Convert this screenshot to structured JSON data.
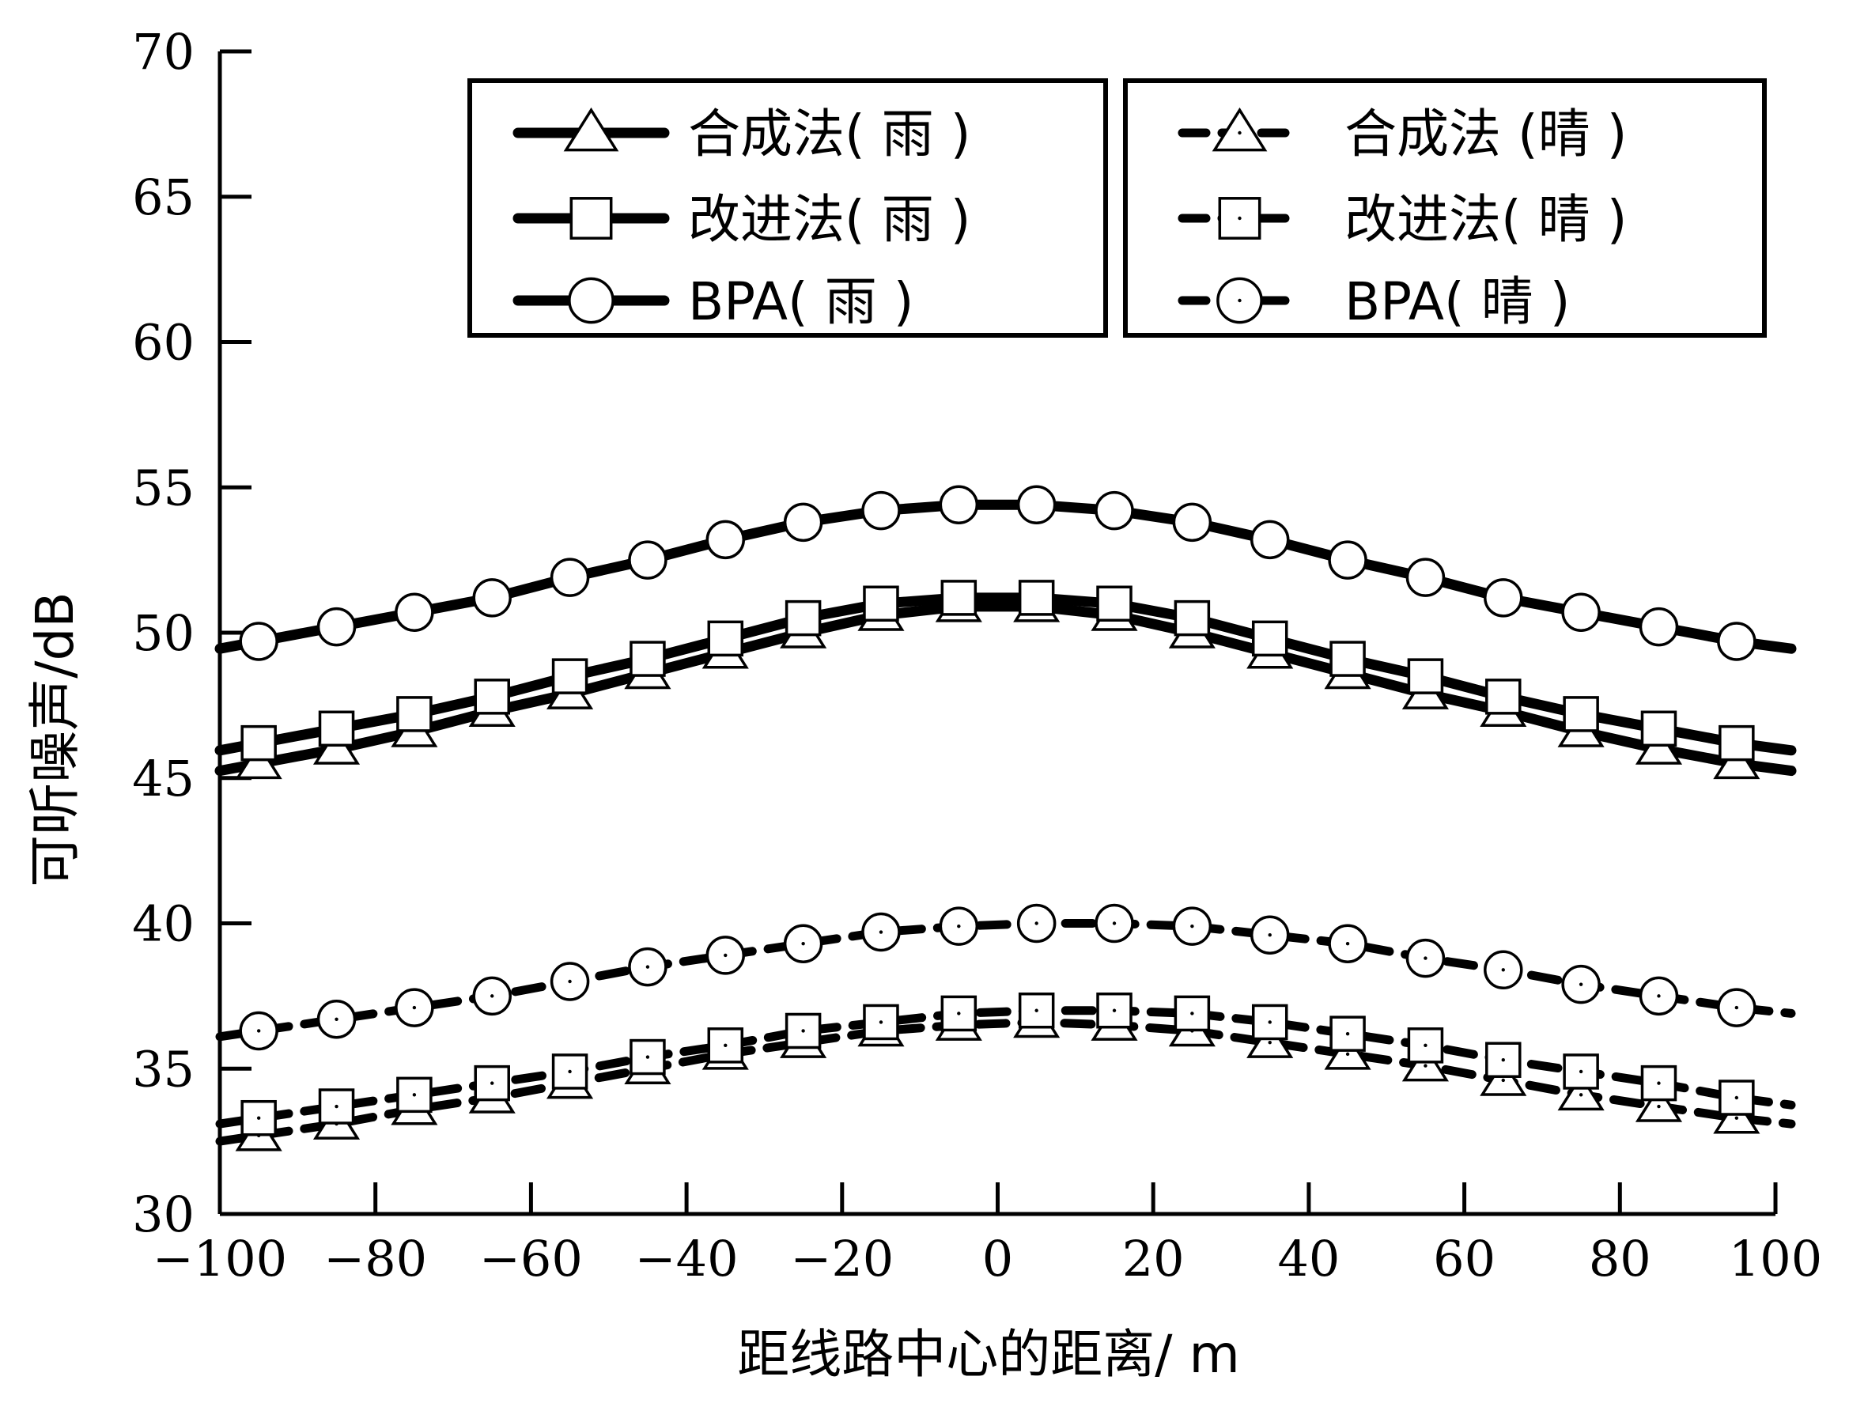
{
  "chart_data": {
    "type": "line",
    "xlabel": "距线路中心的距离/ m",
    "ylabel": "可听噪声/dB",
    "xlim": [
      -100,
      100
    ],
    "ylim": [
      30,
      70
    ],
    "x_ticks": [
      "−100",
      "−80",
      "−60",
      "−40",
      "−20",
      "0",
      "20",
      "40",
      "60",
      "80",
      "100"
    ],
    "y_ticks": [
      "30",
      "35",
      "40",
      "45",
      "50",
      "55",
      "60",
      "65",
      "70"
    ],
    "grid": false,
    "legend_position": "top",
    "marker_x": [
      -95,
      -85,
      -75,
      -65,
      -55,
      -45,
      -35,
      -25,
      -15,
      -5,
      5,
      15,
      25,
      35,
      45,
      55,
      65,
      75,
      85,
      95
    ],
    "series": [
      {
        "name": "合成法( 雨 )",
        "style": "solid",
        "marker": "triangle",
        "values": [
          45.5,
          46.0,
          46.6,
          47.3,
          47.9,
          48.6,
          49.3,
          50.0,
          50.6,
          50.9,
          50.9,
          50.6,
          50.0,
          49.3,
          48.6,
          47.9,
          47.3,
          46.6,
          46.0,
          45.5
        ]
      },
      {
        "name": "改进法( 雨 )",
        "style": "solid",
        "marker": "square",
        "values": [
          46.2,
          46.7,
          47.2,
          47.8,
          48.5,
          49.1,
          49.8,
          50.5,
          51.0,
          51.2,
          51.2,
          51.0,
          50.5,
          49.8,
          49.1,
          48.5,
          47.8,
          47.2,
          46.7,
          46.2
        ]
      },
      {
        "name": "BPA( 雨 )",
        "style": "solid",
        "marker": "circle",
        "values": [
          49.7,
          50.2,
          50.7,
          51.2,
          51.9,
          52.5,
          53.2,
          53.8,
          54.2,
          54.4,
          54.4,
          54.2,
          53.8,
          53.2,
          52.5,
          51.9,
          51.2,
          50.7,
          50.2,
          49.7
        ]
      },
      {
        "name": "合成法 (晴 )",
        "style": "dashed",
        "marker": "triangle",
        "values": [
          32.7,
          33.1,
          33.6,
          34.0,
          34.5,
          35.0,
          35.5,
          35.9,
          36.3,
          36.5,
          36.6,
          36.5,
          36.3,
          35.9,
          35.5,
          35.1,
          34.6,
          34.1,
          33.7,
          33.3
        ]
      },
      {
        "name": "改进法( 晴 )",
        "style": "dashed",
        "marker": "square",
        "values": [
          33.3,
          33.7,
          34.1,
          34.5,
          34.9,
          35.4,
          35.8,
          36.3,
          36.6,
          36.9,
          37.0,
          37.0,
          36.9,
          36.6,
          36.2,
          35.8,
          35.3,
          34.9,
          34.5,
          34.0
        ]
      },
      {
        "name": "BPA( 晴 )",
        "style": "dashed",
        "marker": "circle",
        "values": [
          36.3,
          36.7,
          37.1,
          37.5,
          38.0,
          38.5,
          38.9,
          39.3,
          39.7,
          39.9,
          40.0,
          40.0,
          39.9,
          39.6,
          39.3,
          38.8,
          38.4,
          37.9,
          37.5,
          37.1
        ]
      }
    ]
  }
}
